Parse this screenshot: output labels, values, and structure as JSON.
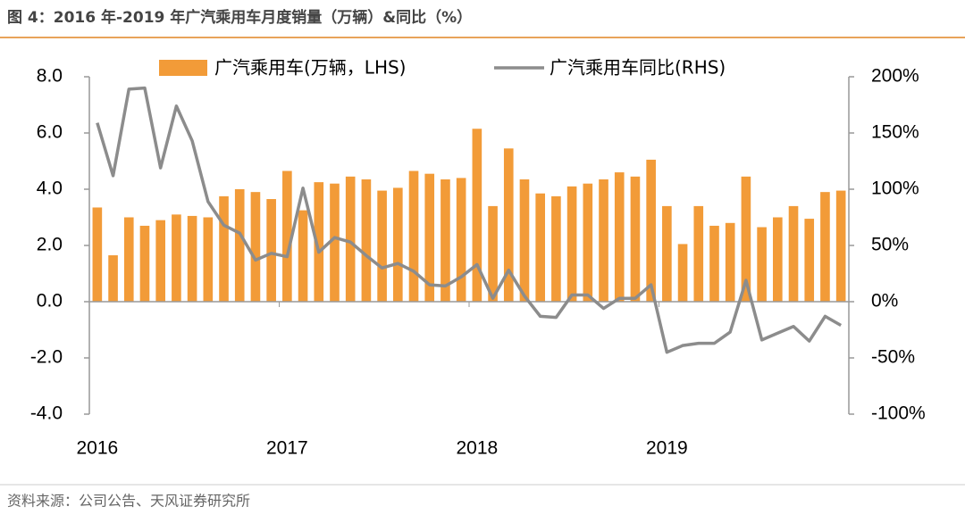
{
  "chart_data": {
    "type": "bar",
    "title": "图 4：2016 年-2019 年广汽乘用车月度销量（万辆）&同比（%）",
    "source": "资料来源：公司公告、天风证券研究所",
    "categories": [
      "2016",
      null,
      null,
      null,
      null,
      null,
      null,
      null,
      null,
      null,
      null,
      null,
      "2017",
      null,
      null,
      null,
      null,
      null,
      null,
      null,
      null,
      null,
      null,
      null,
      "2018",
      null,
      null,
      null,
      null,
      null,
      null,
      null,
      null,
      null,
      null,
      null,
      "2019",
      null,
      null,
      null,
      null,
      null,
      null,
      null,
      null,
      null,
      null,
      null
    ],
    "series": [
      {
        "name": "广汽乘用车(万辆，LHS)",
        "type": "bar",
        "axis": "y",
        "color": "#f29b38",
        "values": [
          3.35,
          1.65,
          3.0,
          2.7,
          2.9,
          3.1,
          3.05,
          3.0,
          3.75,
          4.0,
          3.9,
          3.65,
          4.65,
          3.25,
          4.25,
          4.2,
          4.45,
          4.35,
          3.95,
          4.05,
          4.65,
          4.55,
          4.35,
          4.4,
          6.15,
          3.4,
          5.45,
          4.35,
          3.85,
          3.75,
          4.1,
          4.2,
          4.35,
          4.6,
          4.45,
          5.05,
          3.4,
          2.05,
          3.4,
          2.7,
          2.8,
          4.45,
          2.65,
          3.0,
          3.4,
          2.95,
          3.9,
          3.95
        ]
      },
      {
        "name": "广汽乘用车同比(RHS)",
        "type": "line",
        "axis": "y2",
        "color": "#8c8c8c",
        "values": [
          159,
          112,
          189,
          190,
          119,
          174,
          143,
          89,
          68,
          61,
          37,
          43,
          40,
          101,
          44,
          57,
          53,
          41,
          30,
          34,
          27,
          15,
          14,
          22,
          33,
          3,
          28,
          5,
          -13,
          -14,
          6,
          6,
          -6,
          3,
          3,
          15,
          -45,
          -39,
          -37,
          -37,
          -27,
          19,
          -34,
          -28,
          -22,
          -35,
          -13,
          -21
        ]
      }
    ],
    "ylim": [
      -4,
      8
    ],
    "yticks": [
      {
        "value": -4,
        "label": "-4.0"
      },
      {
        "value": -2,
        "label": "-2.0"
      },
      {
        "value": 0,
        "label": "0.0"
      },
      {
        "value": 2,
        "label": "2.0"
      },
      {
        "value": 4,
        "label": "4.0"
      },
      {
        "value": 6,
        "label": "6.0"
      },
      {
        "value": 8,
        "label": "8.0"
      }
    ],
    "y2lim": [
      -100,
      200
    ],
    "y2ticks": [
      {
        "value": -100,
        "label": "-100%"
      },
      {
        "value": -50,
        "label": "-50%"
      },
      {
        "value": 0,
        "label": "0%"
      },
      {
        "value": 50,
        "label": "50%"
      },
      {
        "value": 100,
        "label": "100%"
      },
      {
        "value": 150,
        "label": "150%"
      },
      {
        "value": 200,
        "label": "200%"
      }
    ]
  }
}
